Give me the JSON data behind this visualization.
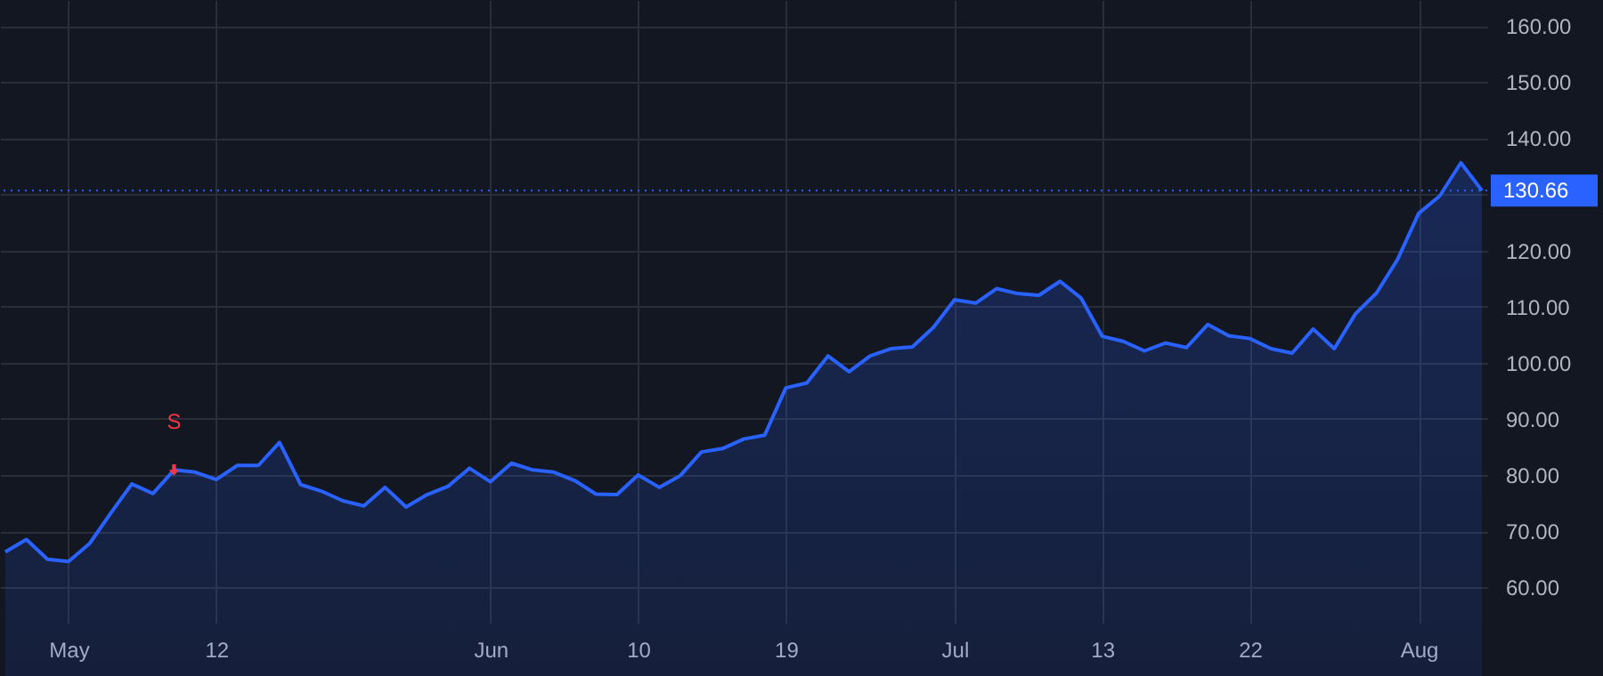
{
  "chart_data": {
    "type": "area",
    "categories": [
      null,
      null,
      null,
      "May",
      null,
      null,
      null,
      null,
      null,
      null,
      "12",
      null,
      null,
      null,
      null,
      null,
      null,
      null,
      null,
      null,
      null,
      null,
      null,
      "Jun",
      null,
      null,
      null,
      null,
      null,
      null,
      "10",
      null,
      null,
      null,
      null,
      null,
      null,
      "19",
      null,
      null,
      null,
      null,
      null,
      null,
      null,
      "Jul",
      null,
      null,
      null,
      null,
      null,
      null,
      "13",
      null,
      null,
      null,
      null,
      null,
      null,
      "22",
      null,
      null,
      null,
      null,
      null,
      null,
      null,
      "Aug",
      null,
      null,
      null
    ],
    "series": [
      {
        "color": "#2962ff",
        "values": [
          66.3,
          68.5,
          65.0,
          64.6,
          67.8,
          73.2,
          78.4,
          76.7,
          80.9,
          80.5,
          79.2,
          81.7,
          81.7,
          85.8,
          78.3,
          77.1,
          75.4,
          74.5,
          77.8,
          74.3,
          76.5,
          78.0,
          81.2,
          78.8,
          82.1,
          80.9,
          80.5,
          79.0,
          76.6,
          76.5,
          80.0,
          77.8,
          79.9,
          84.1,
          84.7,
          86.4,
          87.1,
          95.5,
          96.4,
          101.2,
          98.4,
          101.2,
          102.5,
          102.8,
          106.3,
          111.2,
          110.6,
          113.2,
          112.3,
          112.0,
          114.5,
          111.5,
          104.7,
          103.8,
          102.1,
          103.5,
          102.7,
          106.8,
          104.8,
          104.3,
          102.5,
          101.7,
          106.0,
          102.5,
          108.7,
          112.4,
          118.4,
          126.6,
          129.7,
          135.6,
          130.66
        ]
      }
    ],
    "ylim": [
      53.7,
      164.6
    ],
    "yticks": [
      {
        "value": 60,
        "label": "60.00"
      },
      {
        "value": 70,
        "label": "70.00"
      },
      {
        "value": 80,
        "label": "80.00"
      },
      {
        "value": 90,
        "label": "90.00"
      },
      {
        "value": 100,
        "label": "100.00"
      },
      {
        "value": 110,
        "label": "110.00"
      },
      {
        "value": 120,
        "label": "120.00"
      },
      {
        "value": 130,
        "label": null
      },
      {
        "value": 140,
        "label": "140.00"
      },
      {
        "value": 150,
        "label": "150.00"
      },
      {
        "value": 160,
        "label": "160.00"
      }
    ],
    "grid": true,
    "ref_lines": [
      {
        "axis": "y",
        "value": 130.66,
        "label": "130.66",
        "color": "#2962ff",
        "line_style": "dotted"
      }
    ],
    "annotations": [
      {
        "text": "S",
        "y": 80.9
      }
    ]
  }
}
